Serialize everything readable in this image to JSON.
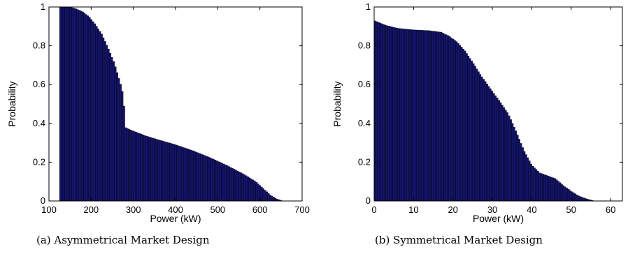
{
  "chart_data": [
    {
      "type": "bar",
      "caption": "(a) Asymmetrical Market Design",
      "xlabel": "Power (kW)",
      "ylabel": "Probability",
      "xlim": [
        100,
        700
      ],
      "ylim": [
        0,
        1
      ],
      "xticks": [
        100,
        200,
        300,
        400,
        500,
        600,
        700
      ],
      "yticks": [
        0,
        0.2,
        0.4,
        0.6,
        0.8,
        1
      ],
      "ytick_labels": [
        "0",
        "0.2",
        "0.4",
        "0.6",
        "0.8",
        "1"
      ],
      "grid": false,
      "bar_color": "#14146e",
      "curve": [
        [
          125,
          1.0
        ],
        [
          150,
          1.0
        ],
        [
          165,
          0.99
        ],
        [
          180,
          0.975
        ],
        [
          195,
          0.95
        ],
        [
          210,
          0.91
        ],
        [
          225,
          0.86
        ],
        [
          240,
          0.79
        ],
        [
          255,
          0.71
        ],
        [
          270,
          0.6
        ],
        [
          277,
          0.535
        ],
        [
          280,
          0.38
        ],
        [
          300,
          0.36
        ],
        [
          330,
          0.335
        ],
        [
          360,
          0.315
        ],
        [
          400,
          0.29
        ],
        [
          440,
          0.26
        ],
        [
          480,
          0.225
        ],
        [
          520,
          0.185
        ],
        [
          560,
          0.14
        ],
        [
          590,
          0.1
        ],
        [
          610,
          0.06
        ],
        [
          625,
          0.03
        ],
        [
          640,
          0.01
        ],
        [
          655,
          0.0
        ]
      ]
    },
    {
      "type": "bar",
      "caption": "(b) Symmetrical Market Design",
      "xlabel": "Power (kW)",
      "ylabel": "Probability",
      "xlim": [
        0,
        63
      ],
      "ylim": [
        0,
        1
      ],
      "xticks": [
        0,
        10,
        20,
        30,
        40,
        50,
        60
      ],
      "yticks": [
        0,
        0.2,
        0.4,
        0.6,
        0.8,
        1
      ],
      "ytick_labels": [
        "0",
        "0.2",
        "0.4",
        "0.6",
        "0.8",
        "1"
      ],
      "grid": false,
      "bar_color": "#14146e",
      "curve": [
        [
          0,
          0.93
        ],
        [
          3,
          0.905
        ],
        [
          6,
          0.89
        ],
        [
          10,
          0.882
        ],
        [
          14,
          0.878
        ],
        [
          17,
          0.87
        ],
        [
          19,
          0.85
        ],
        [
          21,
          0.82
        ],
        [
          23,
          0.775
        ],
        [
          25,
          0.715
        ],
        [
          27,
          0.65
        ],
        [
          30,
          0.565
        ],
        [
          32,
          0.51
        ],
        [
          34,
          0.45
        ],
        [
          36,
          0.36
        ],
        [
          38,
          0.26
        ],
        [
          40,
          0.185
        ],
        [
          42,
          0.145
        ],
        [
          44,
          0.13
        ],
        [
          46,
          0.115
        ],
        [
          48,
          0.08
        ],
        [
          50,
          0.05
        ],
        [
          52,
          0.025
        ],
        [
          54,
          0.01
        ],
        [
          56,
          0.0
        ]
      ]
    }
  ]
}
